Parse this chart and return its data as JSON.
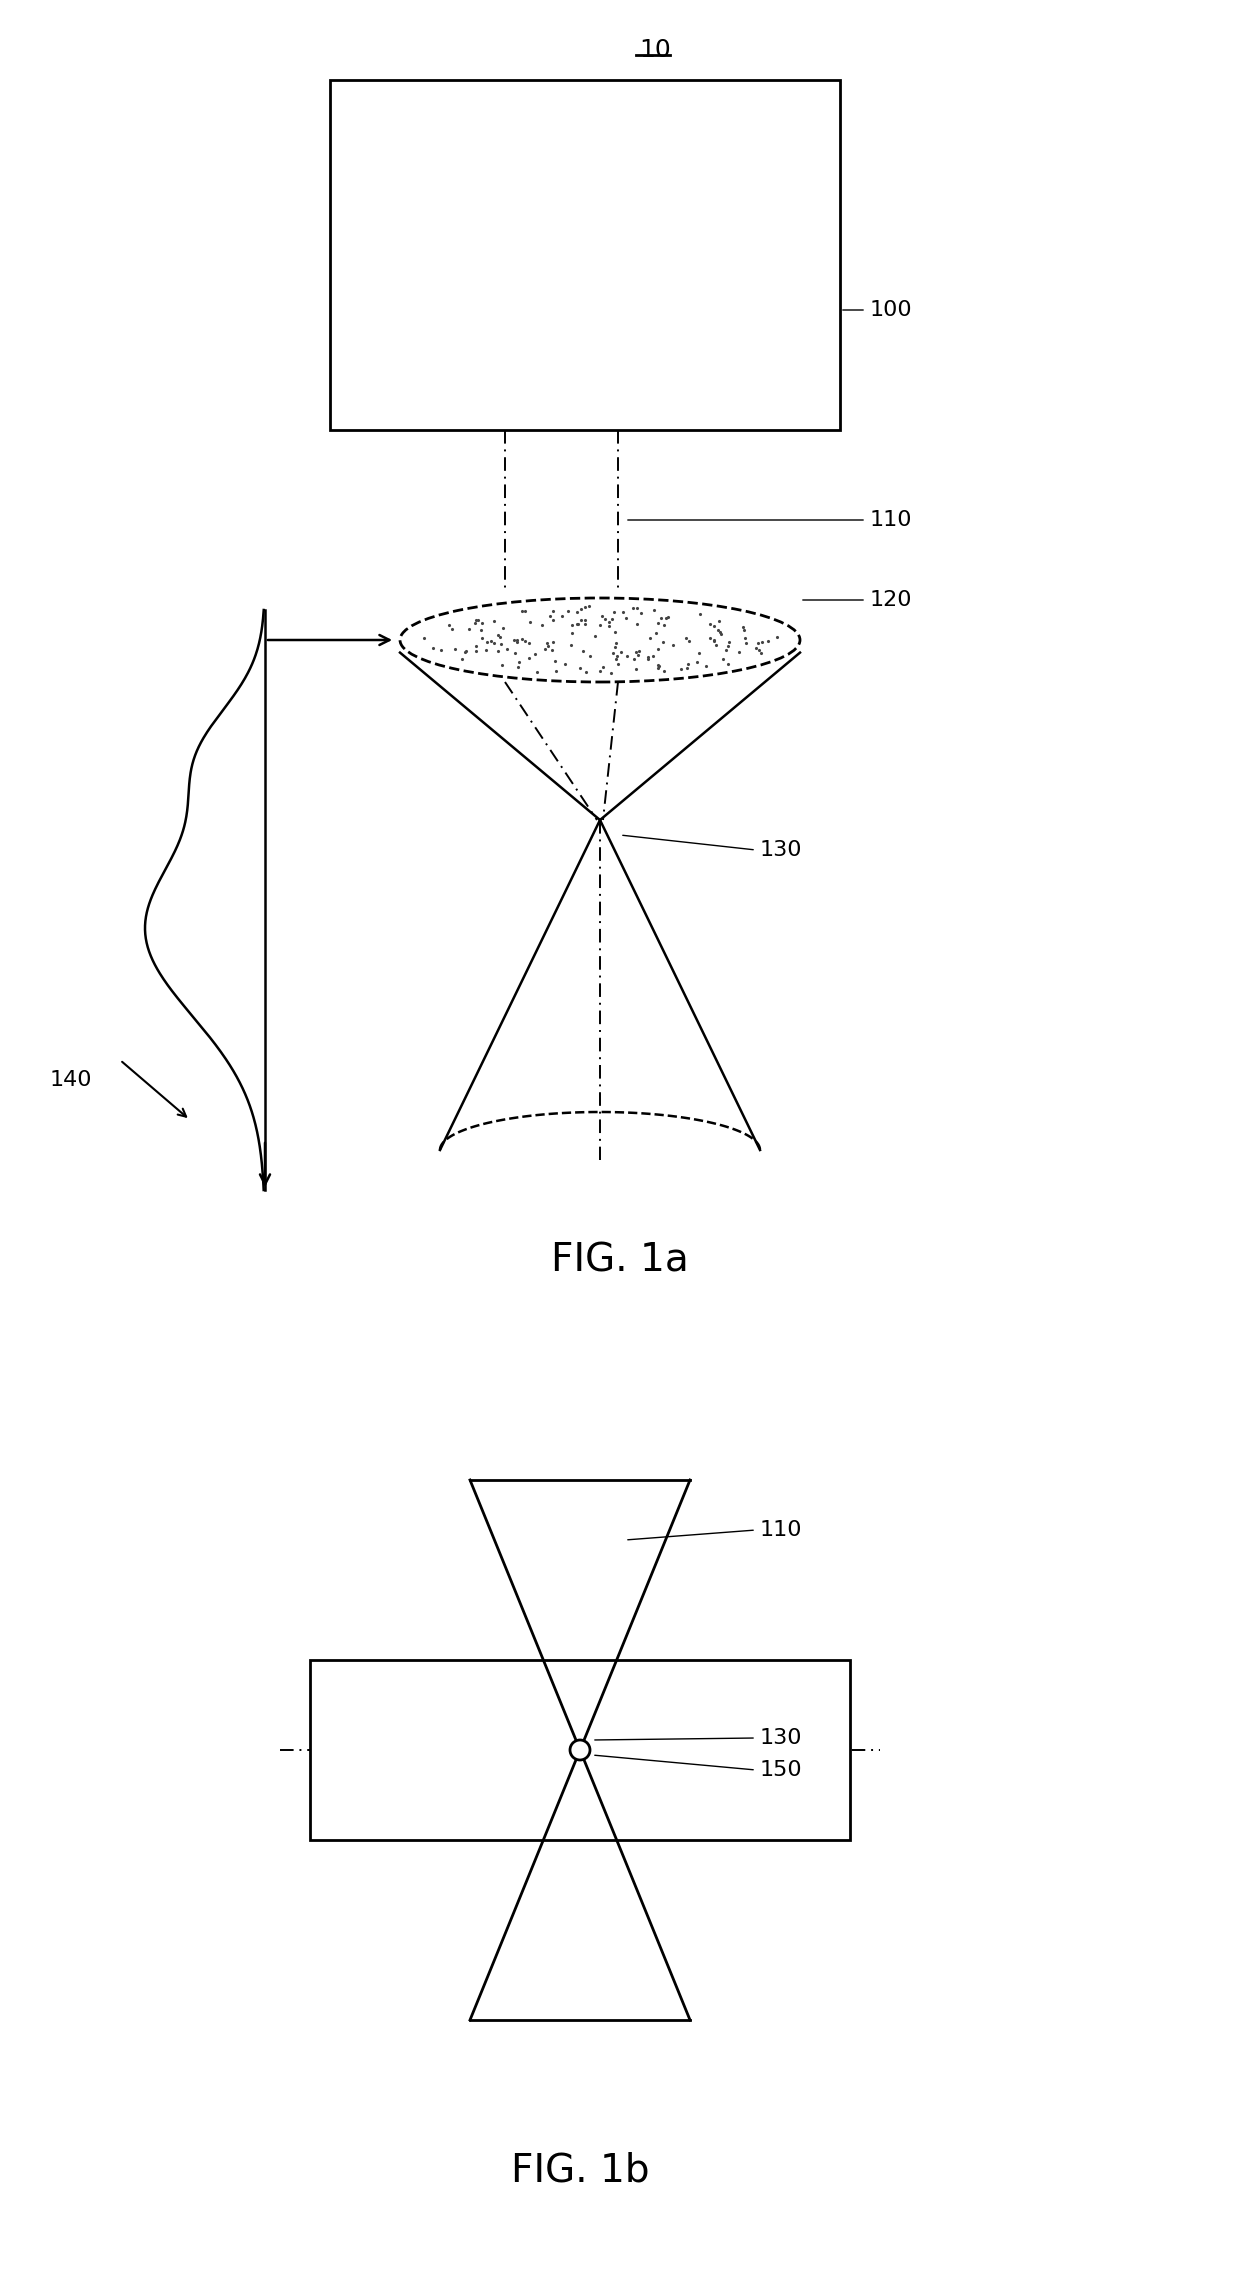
{
  "fig_width": 12.4,
  "fig_height": 22.83,
  "bg_color": "#ffffff",
  "line_color": "#000000",
  "fig1a_label": "FIG. 1a",
  "fig1b_label": "FIG. 1b",
  "label_10": "10",
  "label_100": "100",
  "label_110": "110",
  "label_120": "120",
  "label_130": "130",
  "label_140": "140",
  "label_150": "150"
}
